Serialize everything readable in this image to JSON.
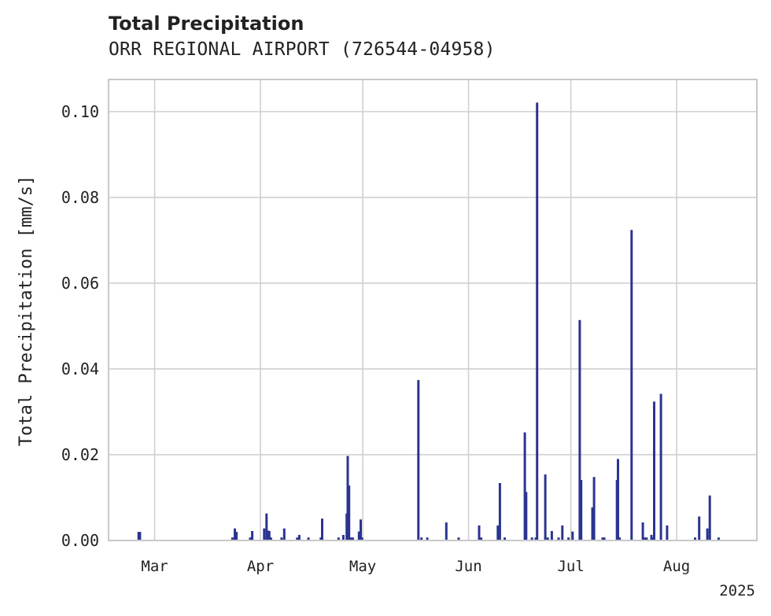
{
  "chart_data": {
    "type": "bar",
    "title": "Total Precipitation",
    "subtitle": "ORR REGIONAL AIRPORT (726544-04958)",
    "xlabel": "",
    "ylabel": "Total Precipitation [mm/s]",
    "ylim": [
      0,
      0.1075
    ],
    "yticks": [
      0.0,
      0.02,
      0.04,
      0.06,
      0.08,
      0.1
    ],
    "ytick_labels": [
      "0.00",
      "0.02",
      "0.04",
      "0.06",
      "0.08",
      "0.10"
    ],
    "xlim_days": [
      -13.5,
      176.5
    ],
    "xticks": [
      {
        "label": "Mar",
        "day": 0
      },
      {
        "label": "Apr",
        "day": 31
      },
      {
        "label": "May",
        "day": 61
      },
      {
        "label": "Jun",
        "day": 92
      },
      {
        "label": "Jul",
        "day": 122
      },
      {
        "label": "Aug",
        "day": 153
      }
    ],
    "year_label": "2025",
    "grid": true,
    "bar_color": "#2b3490",
    "series": [
      {
        "name": "Total Precipitation",
        "x_days": [
          -4.7,
          -4.3,
          22.8,
          23.5,
          24.0,
          28.0,
          28.6,
          32.1,
          32.8,
          33.3,
          33.6,
          34.1,
          37.2,
          38.0,
          41.8,
          42.4,
          45.1,
          48.7,
          49.1,
          53.9,
          55.3,
          56.3,
          56.6,
          57.0,
          57.4,
          58.1,
          59.9,
          60.4,
          60.8,
          77.3,
          78.2,
          79.9,
          85.5,
          89.1,
          95.1,
          95.7,
          100.6,
          101.2,
          102.6,
          108.5,
          108.9,
          110.6,
          111.7,
          112.1,
          114.5,
          115.2,
          116.4,
          118.4,
          119.5,
          121.3,
          122.5,
          124.6,
          125.0,
          128.3,
          128.8,
          131.3,
          131.8,
          135.5,
          135.8,
          136.3,
          139.8,
          143.1,
          143.6,
          144.2,
          145.6,
          145.9,
          146.4,
          148.4,
          150.2,
          158.4,
          159.6,
          162.0,
          162.7,
          165.3
        ],
        "values": [
          0.002,
          0.002,
          0.0007,
          0.0028,
          0.002,
          0.0007,
          0.0022,
          0.0028,
          0.0063,
          0.0023,
          0.0022,
          0.0007,
          0.0007,
          0.0028,
          0.0007,
          0.0013,
          0.0007,
          0.0007,
          0.0051,
          0.0007,
          0.0013,
          0.0063,
          0.0197,
          0.0128,
          0.0007,
          0.0007,
          0.0021,
          0.0049,
          0.0007,
          0.0374,
          0.0007,
          0.0007,
          0.0042,
          0.0007,
          0.0035,
          0.0007,
          0.0035,
          0.0134,
          0.0007,
          0.0252,
          0.0113,
          0.0007,
          0.0007,
          0.1021,
          0.0154,
          0.0007,
          0.0022,
          0.0007,
          0.0035,
          0.0007,
          0.0021,
          0.0514,
          0.0141,
          0.0077,
          0.0148,
          0.0007,
          0.0007,
          0.0141,
          0.019,
          0.0007,
          0.0724,
          0.0042,
          0.0007,
          0.0007,
          0.0013,
          0.0007,
          0.0324,
          0.0342,
          0.0035,
          0.0007,
          0.0056,
          0.0028,
          0.0105,
          0.0007
        ]
      }
    ]
  }
}
